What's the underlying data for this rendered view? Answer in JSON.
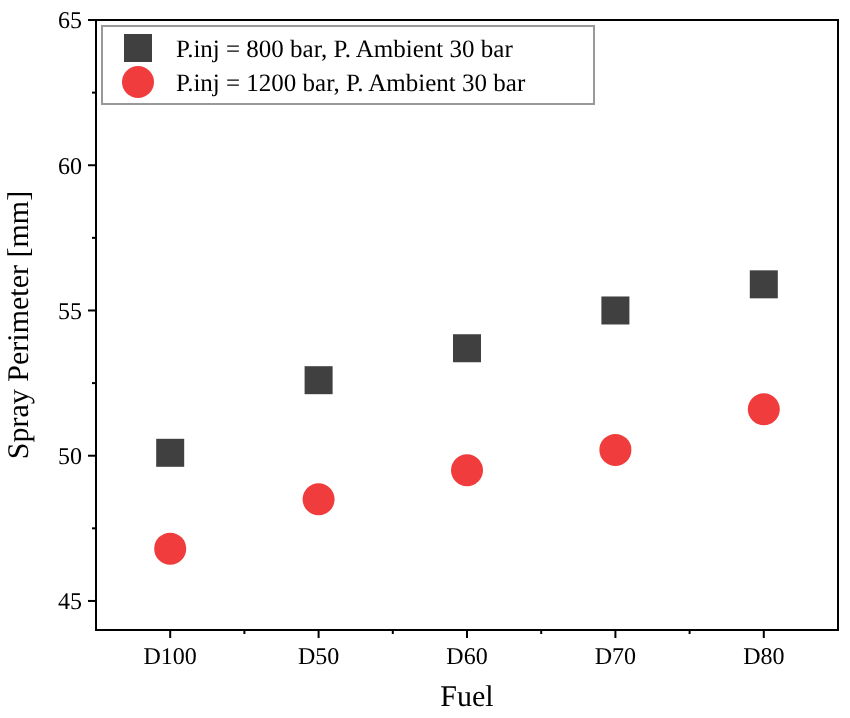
{
  "chart_data": {
    "type": "scatter",
    "xlabel": "Fuel",
    "ylabel": "Spray Perimeter [mm]",
    "categories": [
      "D100",
      "D50",
      "D60",
      "D70",
      "D80"
    ],
    "ylim": [
      44,
      65
    ],
    "yticks": [
      45,
      50,
      55,
      60,
      65
    ],
    "grid": false,
    "legend": "top left",
    "series": [
      {
        "name": "P.inj = 800 bar, P. Ambient  30 bar",
        "color": "#404040",
        "marker": "square",
        "values": [
          50.1,
          52.6,
          53.7,
          55.0,
          55.9
        ]
      },
      {
        "name": "P.inj = 1200 bar, P. Ambient  30 bar",
        "color": "#f03c3c",
        "marker": "circle",
        "values": [
          46.8,
          48.5,
          49.5,
          50.2,
          51.6
        ]
      }
    ]
  }
}
